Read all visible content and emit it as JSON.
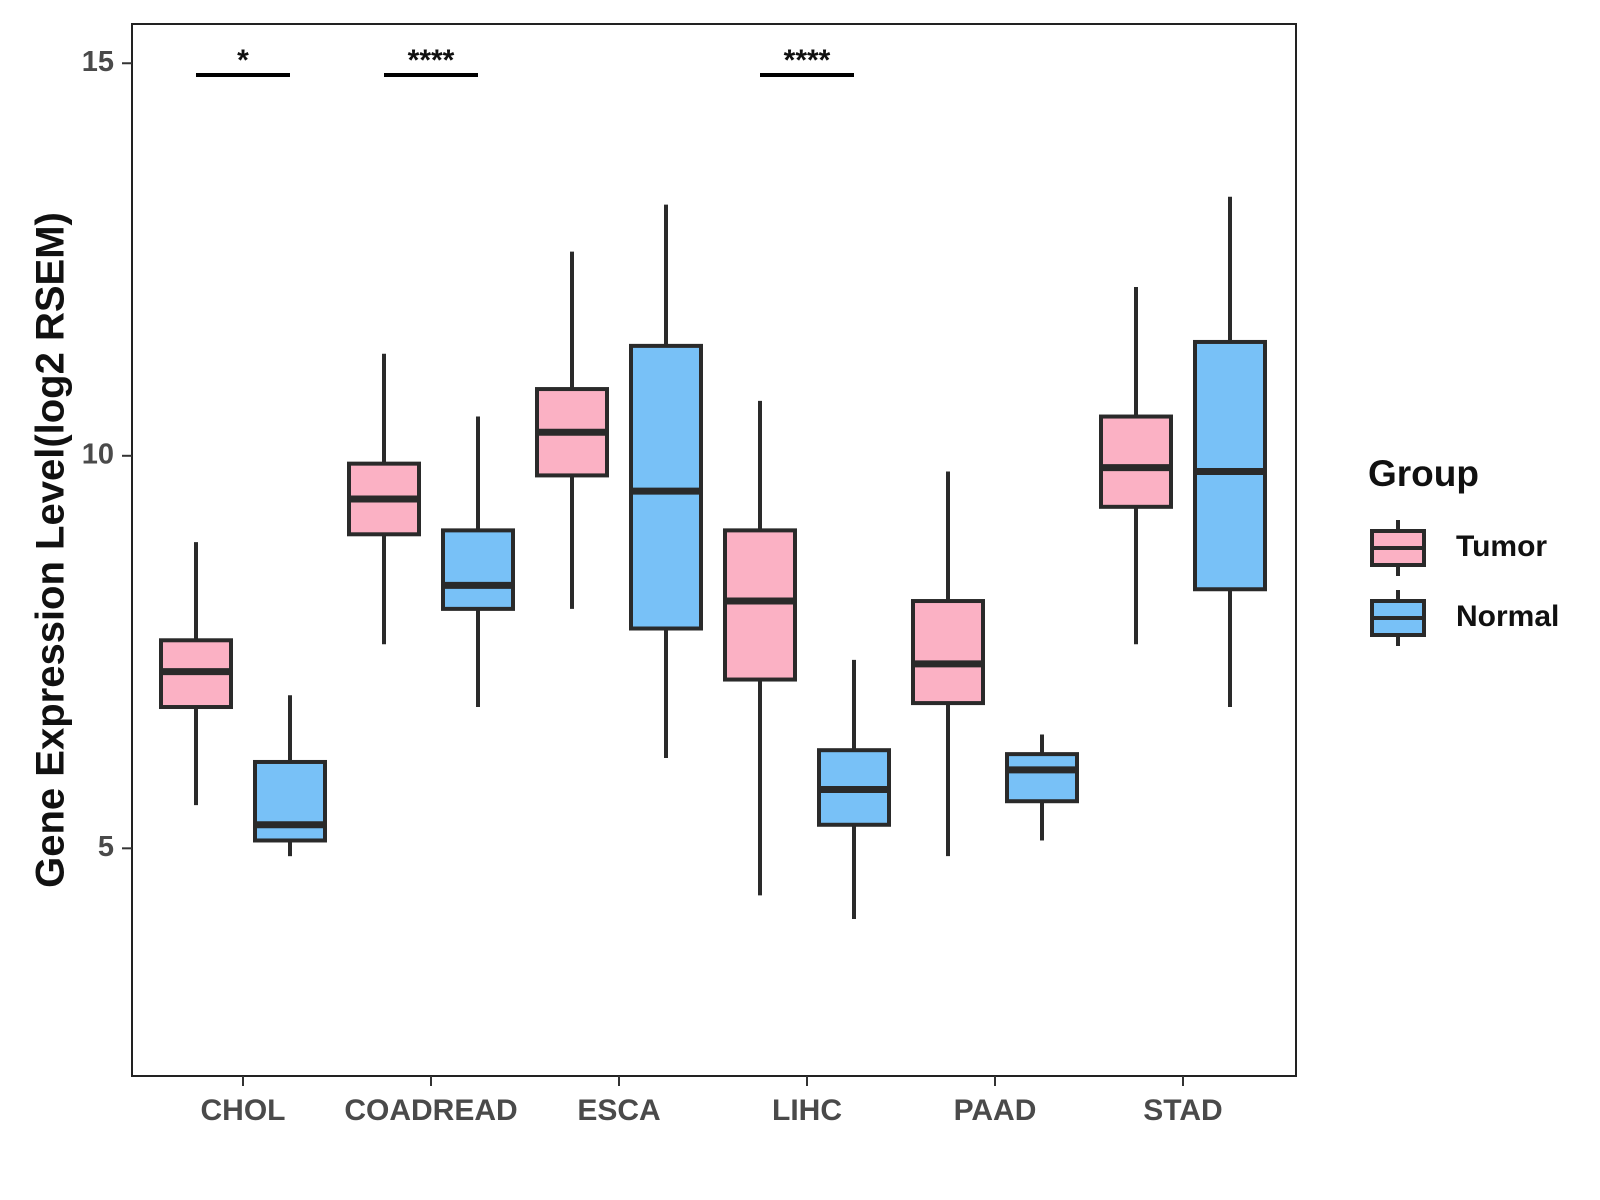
{
  "chart_data": {
    "type": "boxplot",
    "ylabel": "Gene Expression Level(log2 RSEM)",
    "xlabel": "",
    "ylim": [
      2.1,
      15.5
    ],
    "yticks": [
      5,
      10,
      15
    ],
    "categories": [
      "CHOL",
      "COADREAD",
      "ESCA",
      "LIHC",
      "PAAD",
      "STAD"
    ],
    "legend": {
      "title": "Group",
      "position": "right",
      "entries": [
        {
          "name": "Tumor",
          "color": "#FBB1C4"
        },
        {
          "name": "Normal",
          "color": "#78C1F7"
        }
      ]
    },
    "series": [
      {
        "name": "Tumor",
        "color": "#FBB1C4",
        "boxes": [
          {
            "category": "CHOL",
            "min": 5.55,
            "q1": 6.8,
            "median": 7.25,
            "q3": 7.65,
            "max": 8.9
          },
          {
            "category": "COADREAD",
            "min": 7.6,
            "q1": 9.0,
            "median": 9.45,
            "q3": 9.9,
            "max": 11.3
          },
          {
            "category": "ESCA",
            "min": 8.05,
            "q1": 9.75,
            "median": 10.3,
            "q3": 10.85,
            "max": 12.6
          },
          {
            "category": "LIHC",
            "min": 4.4,
            "q1": 7.15,
            "median": 8.15,
            "q3": 9.05,
            "max": 10.7
          },
          {
            "category": "PAAD",
            "min": 4.9,
            "q1": 6.85,
            "median": 7.35,
            "q3": 8.15,
            "max": 9.8
          },
          {
            "category": "STAD",
            "min": 7.6,
            "q1": 9.35,
            "median": 9.85,
            "q3": 10.5,
            "max": 12.15
          }
        ]
      },
      {
        "name": "Normal",
        "color": "#78C1F7",
        "boxes": [
          {
            "category": "CHOL",
            "min": 4.9,
            "q1": 5.1,
            "median": 5.3,
            "q3": 6.1,
            "max": 6.95
          },
          {
            "category": "COADREAD",
            "min": 6.8,
            "q1": 8.05,
            "median": 8.35,
            "q3": 9.05,
            "max": 10.5
          },
          {
            "category": "ESCA",
            "min": 6.15,
            "q1": 7.8,
            "median": 9.55,
            "q3": 11.4,
            "max": 13.2
          },
          {
            "category": "LIHC",
            "min": 4.1,
            "q1": 5.3,
            "median": 5.75,
            "q3": 6.25,
            "max": 7.4
          },
          {
            "category": "PAAD",
            "min": 5.1,
            "q1": 5.6,
            "median": 6.0,
            "q3": 6.2,
            "max": 6.45
          },
          {
            "category": "STAD",
            "min": 6.8,
            "q1": 8.3,
            "median": 9.8,
            "q3": 11.45,
            "max": 13.3
          }
        ]
      }
    ],
    "annotations": [
      {
        "category": "CHOL",
        "label": "*",
        "y": 14.85
      },
      {
        "category": "COADREAD",
        "label": "****",
        "y": 14.85
      },
      {
        "category": "LIHC",
        "label": "****",
        "y": 14.85
      }
    ]
  }
}
